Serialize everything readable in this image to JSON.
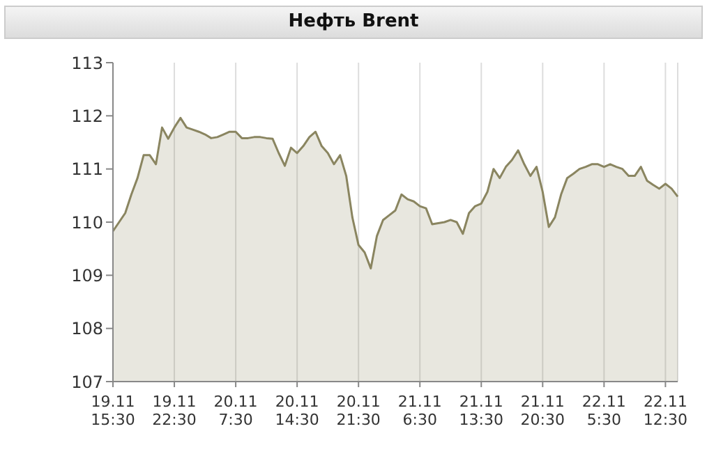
{
  "chart_data": {
    "type": "area",
    "title": "Нефть Brent",
    "categories": [
      "19.11 15:30",
      null,
      null,
      null,
      null,
      null,
      null,
      null,
      null,
      null,
      "19.11 22:30",
      null,
      null,
      null,
      null,
      null,
      null,
      null,
      null,
      null,
      "20.11 7:30",
      null,
      null,
      null,
      null,
      null,
      null,
      null,
      null,
      null,
      "20.11 14:30",
      null,
      null,
      null,
      null,
      null,
      null,
      null,
      null,
      null,
      "20.11 21:30",
      null,
      null,
      null,
      null,
      null,
      null,
      null,
      null,
      null,
      "21.11 6:30",
      null,
      null,
      null,
      null,
      null,
      null,
      null,
      null,
      null,
      "21.11 13:30",
      null,
      null,
      null,
      null,
      null,
      null,
      null,
      null,
      null,
      "21.11 20:30",
      null,
      null,
      null,
      null,
      null,
      null,
      null,
      null,
      null,
      "22.11 5:30",
      null,
      null,
      null,
      null,
      null,
      null,
      null,
      null,
      null,
      "22.11 12:30",
      null,
      null
    ],
    "series": [
      {
        "color": "#8a8560",
        "values": [
          109.83,
          110.0,
          110.17,
          110.52,
          110.83,
          111.26,
          111.26,
          111.09,
          111.78,
          111.57,
          111.78,
          111.96,
          111.78,
          111.74,
          111.7,
          111.65,
          111.58,
          111.6,
          111.65,
          111.7,
          111.7,
          111.58,
          111.58,
          111.6,
          111.6,
          111.58,
          111.57,
          111.3,
          111.06,
          111.4,
          111.3,
          111.43,
          111.6,
          111.7,
          111.43,
          111.3,
          111.09,
          111.26,
          110.87,
          110.09,
          109.57,
          109.43,
          109.13,
          109.74,
          110.04,
          110.13,
          110.22,
          110.52,
          110.43,
          110.39,
          110.3,
          110.26,
          109.96,
          109.98,
          110.0,
          110.04,
          110.0,
          109.78,
          110.17,
          110.3,
          110.35,
          110.57,
          111.0,
          110.83,
          111.04,
          111.17,
          111.35,
          111.09,
          110.87,
          111.04,
          110.57,
          109.91,
          110.09,
          110.52,
          110.83,
          110.91,
          111.0,
          111.04,
          111.09,
          111.09,
          111.04,
          111.09,
          111.04,
          111.0,
          110.87,
          110.87,
          111.04,
          110.78,
          110.7,
          110.63,
          110.72,
          110.63,
          110.48
        ]
      }
    ],
    "ylim": [
      107,
      113
    ],
    "yticks": [
      107,
      108,
      109,
      110,
      111,
      112,
      113
    ],
    "grid": "x"
  }
}
